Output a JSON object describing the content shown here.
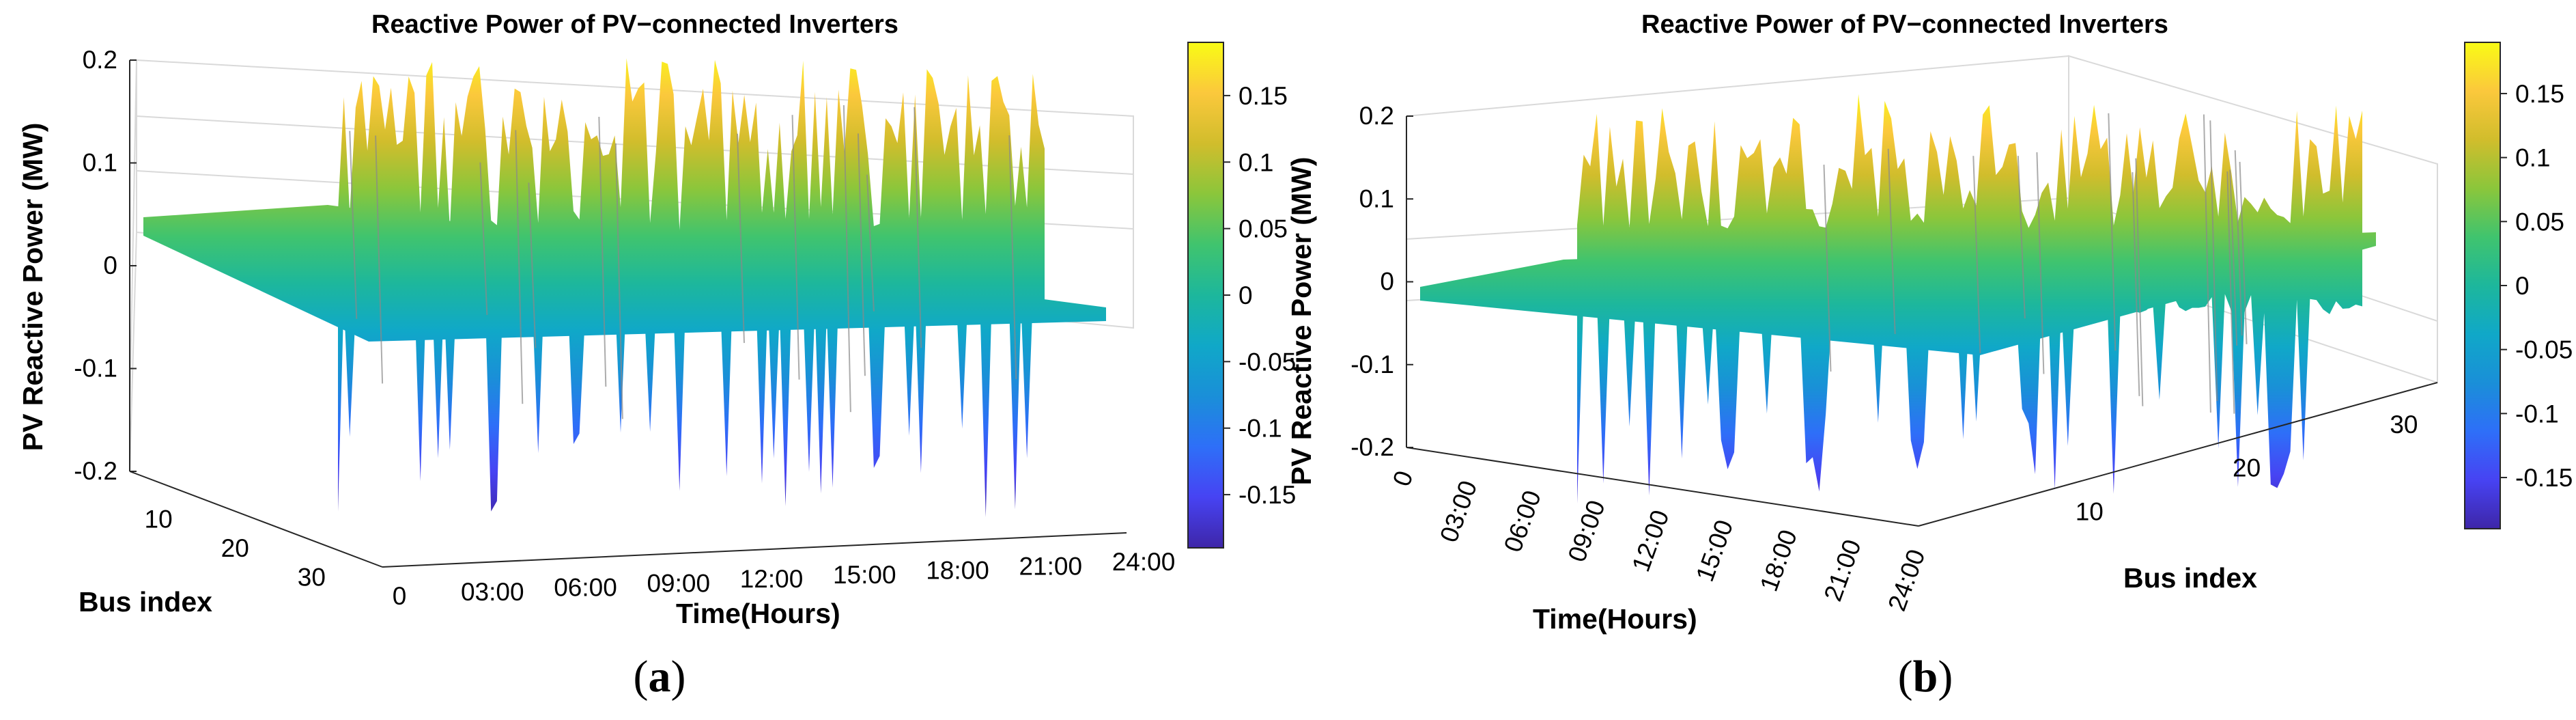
{
  "colormap": [
    "#3e26a8",
    "#4743f3",
    "#2e6ff8",
    "#1a8fd8",
    "#10a8c8",
    "#1db79c",
    "#40c46e",
    "#8bc63b",
    "#d1bd2c",
    "#fbc83c",
    "#f9fb15"
  ],
  "chart_data": [
    {
      "type": "surface",
      "panel": "(a)",
      "title": "Reactive Power of PV−connected Inverters",
      "zlabel": "PV Reactive Power (MW)",
      "xlabel": "Time(Hours)",
      "ylabel": "Bus index",
      "zlim": [
        -0.2,
        0.2
      ],
      "z_ticks": [
        "-0.2",
        "-0.1",
        "0",
        "0.1",
        "0.2"
      ],
      "time_ticks": [
        "0",
        "03:00",
        "06:00",
        "09:00",
        "12:00",
        "15:00",
        "18:00",
        "21:00",
        "24:00"
      ],
      "bus_ticks": [
        "10",
        "20",
        "30"
      ],
      "colorbar": {
        "range": [
          -0.19,
          0.19
        ],
        "ticks": [
          "0.15",
          "0.1",
          "0.05",
          "0",
          "-0.05",
          "-0.1",
          "-0.15"
        ]
      },
      "grid": true
    },
    {
      "type": "surface",
      "panel": "(b)",
      "title": "Reactive Power of PV−connected Inverters",
      "zlabel": "PV Reactive Power (MW)",
      "xlabel": "Time(Hours)",
      "ylabel": "Bus index",
      "zlim": [
        -0.2,
        0.2
      ],
      "z_ticks": [
        "-0.2",
        "-0.1",
        "0",
        "0.1",
        "0.2"
      ],
      "time_ticks": [
        "0",
        "03:00",
        "06:00",
        "09:00",
        "12:00",
        "15:00",
        "18:00",
        "21:00",
        "24:00"
      ],
      "bus_ticks": [
        "10",
        "20",
        "30"
      ],
      "colorbar": {
        "range": [
          -0.19,
          0.19
        ],
        "ticks": [
          "0.15",
          "0.1",
          "0.05",
          "0",
          "-0.05",
          "-0.1",
          "-0.15"
        ]
      },
      "grid": true
    }
  ]
}
